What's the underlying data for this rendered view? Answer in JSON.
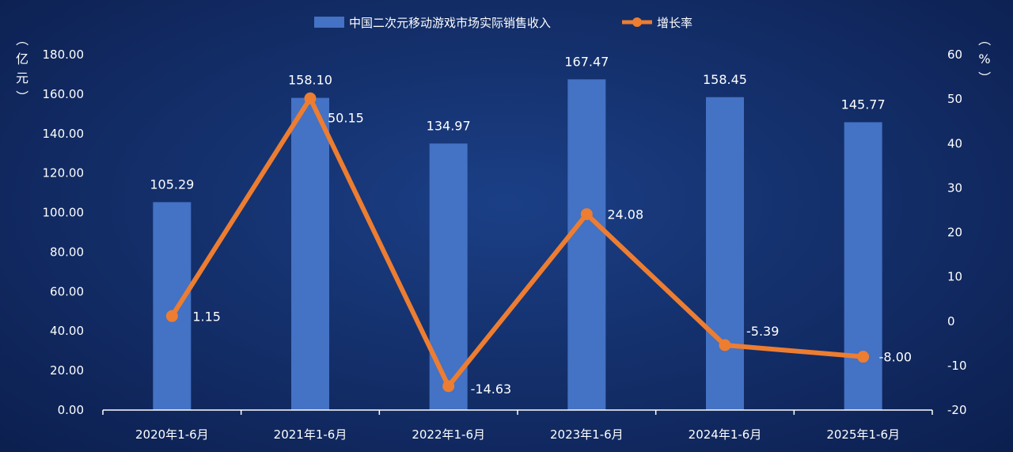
{
  "chart_data": {
    "type": "bar+line",
    "categories": [
      "2020年1-6月",
      "2021年1-6月",
      "2022年1-6月",
      "2023年1-6月",
      "2024年1-6月",
      "2025年1-6月"
    ],
    "series": [
      {
        "name": "中国二次元移动游戏市场实际销售收入",
        "type": "bar",
        "axis": "left",
        "values": [
          105.29,
          158.1,
          134.97,
          167.47,
          158.45,
          145.77
        ],
        "labels": [
          "105.29",
          "158.10",
          "134.97",
          "167.47",
          "158.45",
          "145.77"
        ]
      },
      {
        "name": "增长率",
        "type": "line",
        "axis": "right",
        "values": [
          1.15,
          50.15,
          -14.63,
          24.08,
          -5.39,
          -8.0
        ],
        "labels": [
          "1.15",
          "50.15",
          "-14.63",
          "24.08",
          "-5.39",
          "-8.00"
        ]
      }
    ],
    "y_left": {
      "label": "（亿元）",
      "ylim": [
        0,
        180
      ],
      "ticks": [
        "0.00",
        "20.00",
        "40.00",
        "60.00",
        "80.00",
        "100.00",
        "120.00",
        "140.00",
        "160.00",
        "180.00"
      ]
    },
    "y_right": {
      "label": "（%）",
      "ylim": [
        -20,
        60
      ],
      "ticks": [
        "-20",
        "-10",
        "0",
        "10",
        "20",
        "30",
        "40",
        "50",
        "60"
      ]
    },
    "legend_position": "top-center",
    "grid": false,
    "colors": {
      "bar": "#4472c4",
      "line": "#ed7d31",
      "text": "#ffffff",
      "axis": "#ffffff"
    }
  }
}
